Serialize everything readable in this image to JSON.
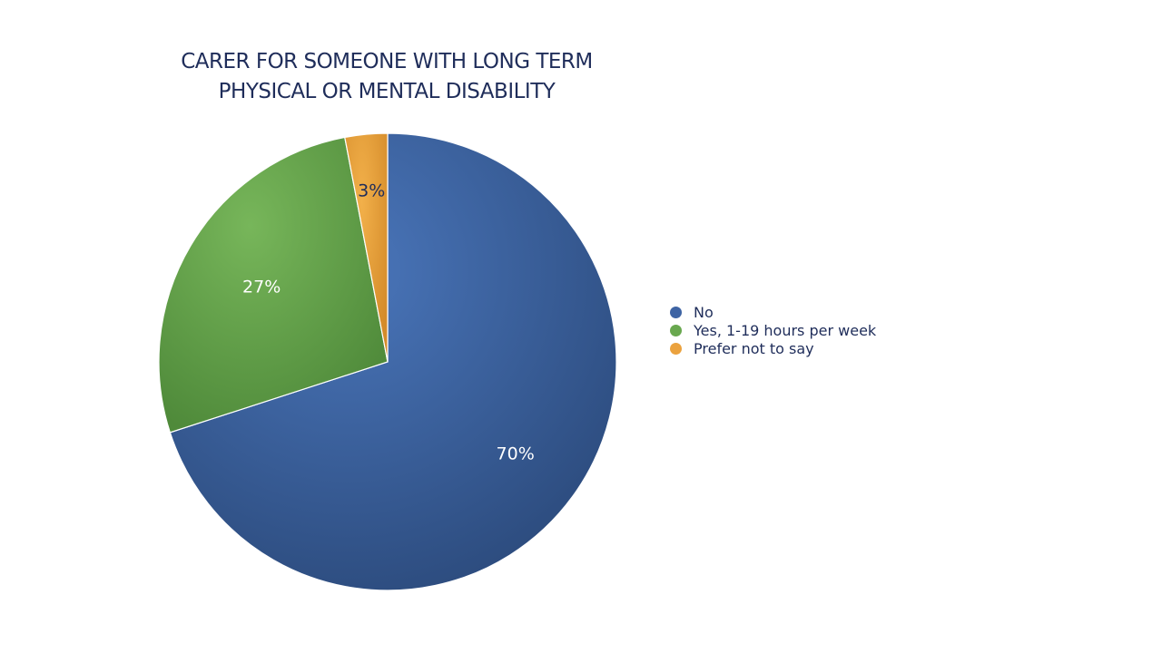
{
  "chart_data": {
    "type": "pie",
    "title_lines": [
      "CARER FOR SOMEONE WITH LONG TERM",
      "PHYSICAL OR MENTAL DISABILITY"
    ],
    "categories": [
      "No",
      "Yes, 1-19 hours per week",
      "Prefer not to say"
    ],
    "values": [
      70,
      27,
      3
    ],
    "data_labels": [
      "70%",
      "27%",
      "3%"
    ],
    "colors": [
      "#3e64a4",
      "#69a84f",
      "#eba23e"
    ],
    "legend_position": "right"
  }
}
